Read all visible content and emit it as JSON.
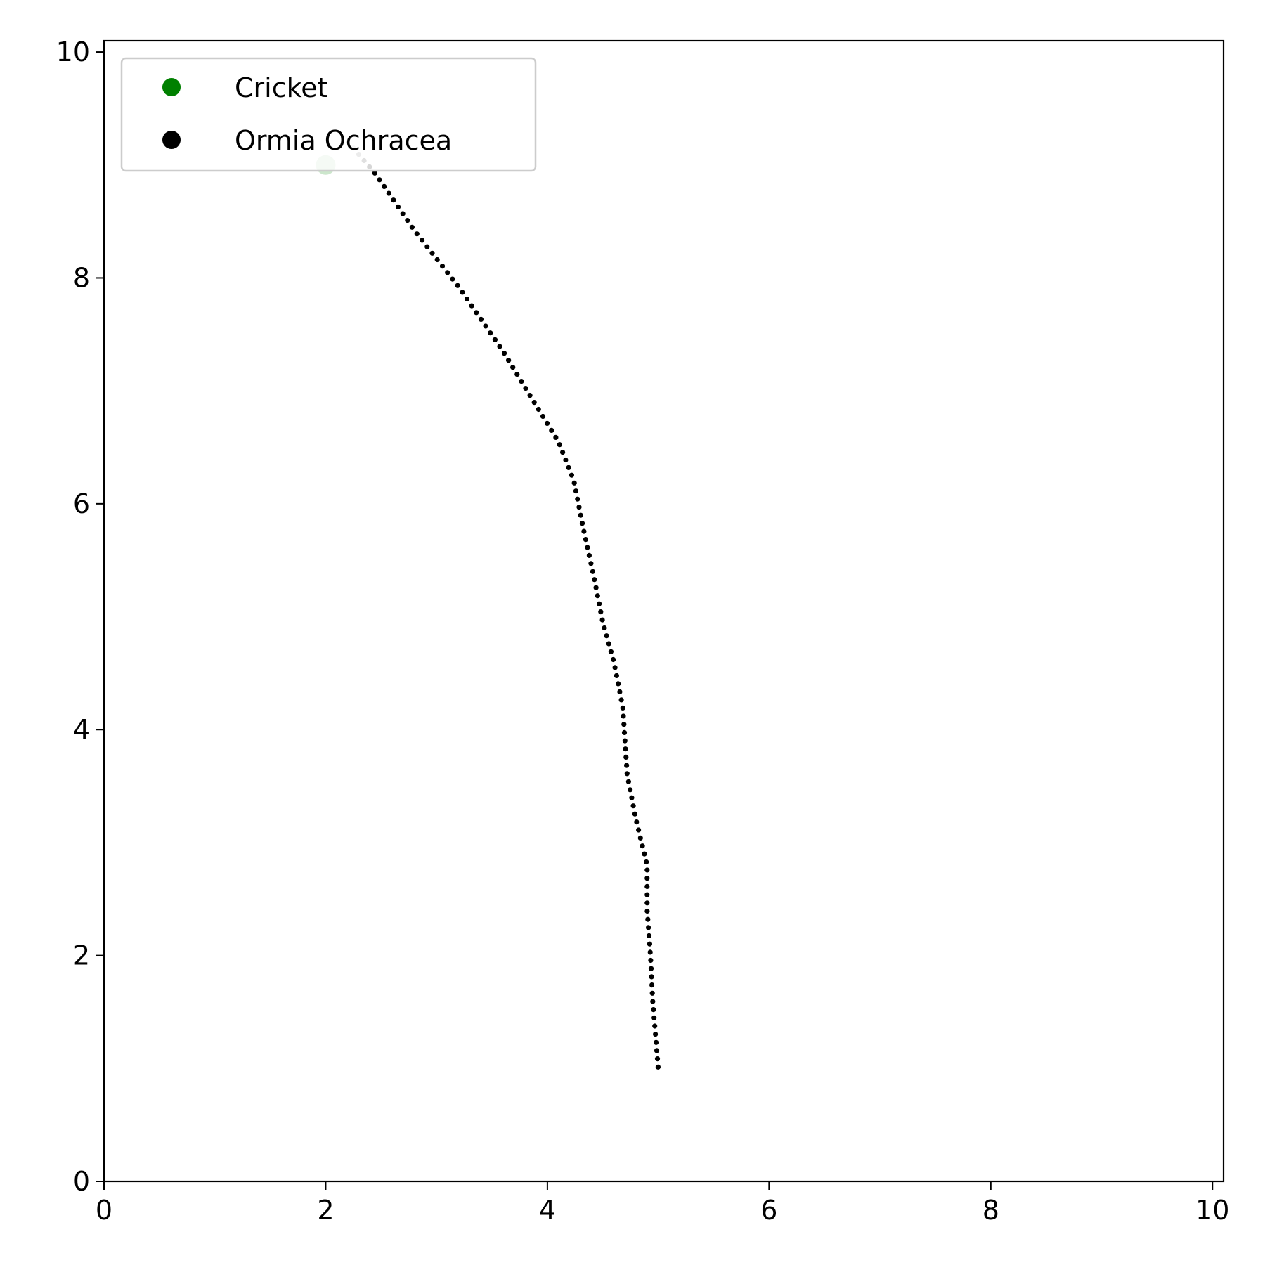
{
  "chart_data": {
    "type": "scatter",
    "title": "",
    "xlabel": "",
    "ylabel": "",
    "xlim": [
      0,
      10.1
    ],
    "ylim": [
      0,
      10.1
    ],
    "x_ticks": [
      0,
      2,
      4,
      6,
      8,
      10
    ],
    "y_ticks": [
      0,
      2,
      4,
      6,
      8,
      10
    ],
    "grid": false,
    "legend": {
      "placement": "top-left",
      "entries": [
        {
          "label": "Cricket",
          "color": "#008000"
        },
        {
          "label": "Ormia Ochracea",
          "color": "#000000"
        }
      ]
    },
    "series": [
      {
        "name": "Cricket",
        "color": "#008000",
        "points": [
          {
            "x": 2.0,
            "y": 9.0
          }
        ]
      },
      {
        "name": "Ormia Ochracea",
        "color": "#000000",
        "path_waypoints": [
          [
            2.25,
            9.15
          ],
          [
            2.45,
            8.92
          ],
          [
            2.8,
            8.42
          ],
          [
            3.2,
            7.92
          ],
          [
            3.6,
            7.35
          ],
          [
            3.88,
            6.9
          ],
          [
            4.1,
            6.55
          ],
          [
            4.24,
            6.2
          ],
          [
            4.32,
            5.8
          ],
          [
            4.42,
            5.35
          ],
          [
            4.5,
            4.95
          ],
          [
            4.6,
            4.6
          ],
          [
            4.68,
            4.2
          ],
          [
            4.72,
            3.6
          ],
          [
            4.8,
            3.2
          ],
          [
            4.9,
            2.8
          ],
          [
            4.9,
            2.4
          ],
          [
            4.93,
            2.0
          ],
          [
            4.95,
            1.6
          ],
          [
            5.0,
            1.0
          ]
        ]
      }
    ]
  }
}
